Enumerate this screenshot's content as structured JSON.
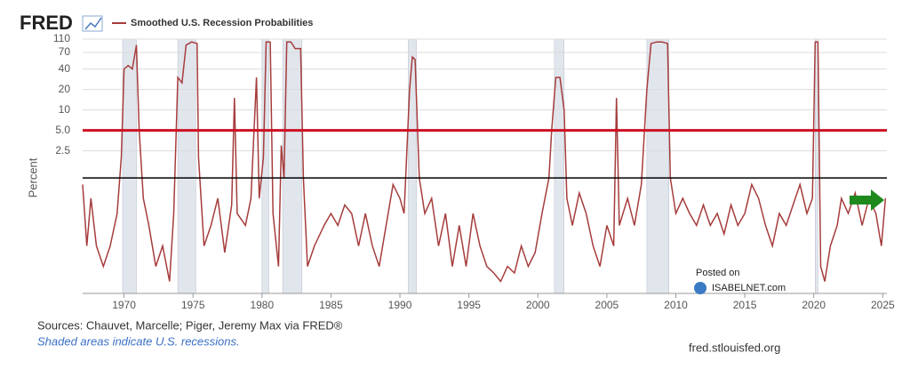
{
  "chart_data": {
    "type": "line",
    "logo": "FRED",
    "ylabel": "Percent",
    "log_scale": true,
    "grid": true,
    "xlim": [
      1967.0,
      2025.3
    ],
    "xticks": [
      1970,
      1975,
      1980,
      1985,
      1990,
      1995,
      2000,
      2005,
      2010,
      2015,
      2020,
      2025
    ],
    "ylim": [
      0.02,
      110
    ],
    "yticks": [
      110,
      70,
      40,
      20,
      10,
      {
        "value": 5,
        "label": "5.0"
      },
      2.5
    ],
    "recessions": [
      [
        1969.9,
        1970.9
      ],
      [
        1973.9,
        1975.2
      ],
      [
        1980.0,
        1980.5
      ],
      [
        1981.5,
        1982.9
      ],
      [
        1990.6,
        1991.2
      ],
      [
        2001.2,
        2001.9
      ],
      [
        2007.9,
        2009.5
      ],
      [
        2020.1,
        2020.3
      ]
    ],
    "reference_lines": [
      {
        "value": 5,
        "color": "#cc1122"
      },
      {
        "value": 1,
        "color": "#000000"
      }
    ],
    "x": [
      1967.0,
      1967.3,
      1967.6,
      1968.0,
      1968.5,
      1969.0,
      1969.5,
      1969.8,
      1970.0,
      1970.3,
      1970.6,
      1970.9,
      1971.1,
      1971.4,
      1971.8,
      1972.3,
      1972.8,
      1973.3,
      1973.6,
      1973.9,
      1974.2,
      1974.5,
      1974.9,
      1975.3,
      1975.4,
      1975.8,
      1976.3,
      1976.8,
      1977.3,
      1977.8,
      1978.0,
      1978.2,
      1978.8,
      1979.2,
      1979.6,
      1979.8,
      1980.1,
      1980.3,
      1980.6,
      1980.8,
      1981.2,
      1981.4,
      1981.6,
      1981.8,
      1982.1,
      1982.4,
      1982.8,
      1983.0,
      1983.3,
      1983.8,
      1984.5,
      1985.0,
      1985.5,
      1986.0,
      1986.5,
      1987.0,
      1987.5,
      1988.0,
      1988.5,
      1989.0,
      1989.5,
      1990.0,
      1990.3,
      1990.7,
      1990.9,
      1991.1,
      1991.4,
      1991.8,
      1992.3,
      1992.8,
      1993.3,
      1993.8,
      1994.3,
      1994.8,
      1995.3,
      1995.8,
      1996.3,
      1996.8,
      1997.3,
      1997.8,
      1998.3,
      1998.8,
      1999.3,
      1999.8,
      2000.3,
      2000.8,
      2001.0,
      2001.3,
      2001.6,
      2001.9,
      2002.1,
      2002.5,
      2003.0,
      2003.5,
      2004.0,
      2004.5,
      2005.0,
      2005.5,
      2005.7,
      2005.9,
      2006.5,
      2007.0,
      2007.5,
      2007.9,
      2008.2,
      2008.6,
      2009.0,
      2009.4,
      2009.6,
      2010.0,
      2010.5,
      2011.0,
      2011.5,
      2012.0,
      2012.5,
      2013.0,
      2013.5,
      2014.0,
      2014.5,
      2015.0,
      2015.5,
      2016.0,
      2016.5,
      2017.0,
      2017.5,
      2018.0,
      2018.5,
      2019.0,
      2019.5,
      2019.9,
      2020.1,
      2020.3,
      2020.5,
      2020.8,
      2021.2,
      2021.7,
      2022.0,
      2022.5,
      2023.0,
      2023.5,
      2024.0,
      2024.5,
      2024.9,
      2025.2
    ],
    "series": [
      {
        "name": "Smoothed U.S. Recession Probabilities",
        "color": "#a63c3c",
        "values": [
          0.8,
          0.1,
          0.5,
          0.1,
          0.05,
          0.1,
          0.3,
          2,
          40,
          45,
          40,
          90,
          5,
          0.5,
          0.2,
          0.05,
          0.1,
          0.03,
          0.3,
          30,
          25,
          90,
          100,
          95,
          2,
          0.1,
          0.2,
          0.5,
          0.08,
          0.4,
          15,
          0.3,
          0.2,
          0.5,
          30,
          0.5,
          2,
          100,
          100,
          0.3,
          0.05,
          3,
          1,
          100,
          100,
          80,
          80,
          1,
          0.05,
          0.1,
          0.2,
          0.3,
          0.2,
          0.4,
          0.3,
          0.1,
          0.3,
          0.1,
          0.05,
          0.2,
          0.8,
          0.5,
          0.3,
          20,
          60,
          55,
          1,
          0.3,
          0.5,
          0.1,
          0.3,
          0.05,
          0.2,
          0.05,
          0.3,
          0.1,
          0.05,
          0.04,
          0.03,
          0.05,
          0.04,
          0.1,
          0.05,
          0.08,
          0.3,
          1,
          5,
          30,
          30,
          10,
          0.5,
          0.2,
          0.6,
          0.3,
          0.1,
          0.05,
          0.2,
          0.1,
          15,
          0.2,
          0.5,
          0.2,
          0.8,
          20,
          95,
          100,
          100,
          95,
          1,
          0.3,
          0.5,
          0.3,
          0.2,
          0.4,
          0.2,
          0.3,
          0.15,
          0.4,
          0.2,
          0.3,
          0.8,
          0.5,
          0.2,
          0.1,
          0.3,
          0.2,
          0.4,
          0.8,
          0.3,
          0.5,
          100,
          100,
          0.05,
          0.03,
          0.1,
          0.2,
          0.5,
          0.3,
          0.6,
          0.2,
          0.5,
          0.3,
          0.1,
          0.5
        ]
      }
    ],
    "source": "Sources: Chauvet, Marcelle; Piger, Jeremy Max via FRED®",
    "note": "Shaded areas indicate U.S. recessions.",
    "posted_on": "Posted on",
    "watermark": "ISABELNET.com",
    "site": "fred.stlouisfed.org"
  }
}
